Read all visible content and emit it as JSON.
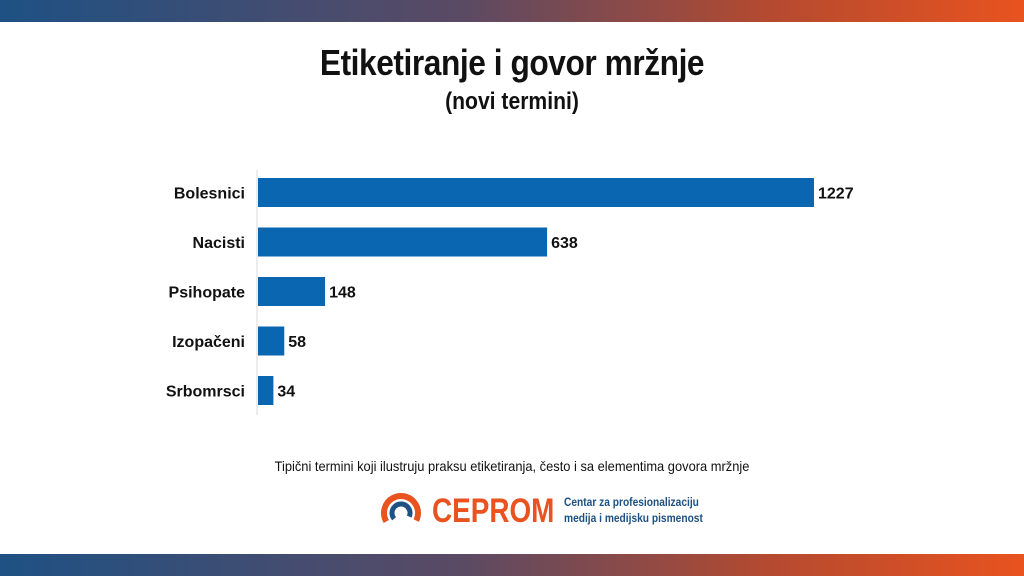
{
  "header": {
    "title": "Etiketiranje i govor mržnje",
    "subtitle": "(novi termini)"
  },
  "chart_data": {
    "type": "bar",
    "orientation": "horizontal",
    "title": "Etiketiranje i govor mržnje",
    "subtitle": "(novi termini)",
    "categories": [
      "Bolesnici",
      "Nacisti",
      "Psihopate",
      "Izopačeni",
      "Srbomrsci"
    ],
    "values": [
      1227,
      638,
      148,
      58,
      34
    ],
    "xlim": [
      0,
      1227
    ],
    "bar_color": "#0b66b2",
    "grid": false,
    "legend": "none",
    "data_labels": true
  },
  "caption": "Tipični termini koji ilustruju praksu etiketiranja, često i sa elementima govora mržnje",
  "logo": {
    "name": "CEPROM",
    "description_line1": "Centar za profesionalizaciju",
    "description_line2": "medija i medijsku pismenost",
    "accent_color": "#e8531f",
    "secondary_color": "#1e5184"
  },
  "colors": {
    "band_start": "#1e5184",
    "band_end": "#e8531f"
  }
}
